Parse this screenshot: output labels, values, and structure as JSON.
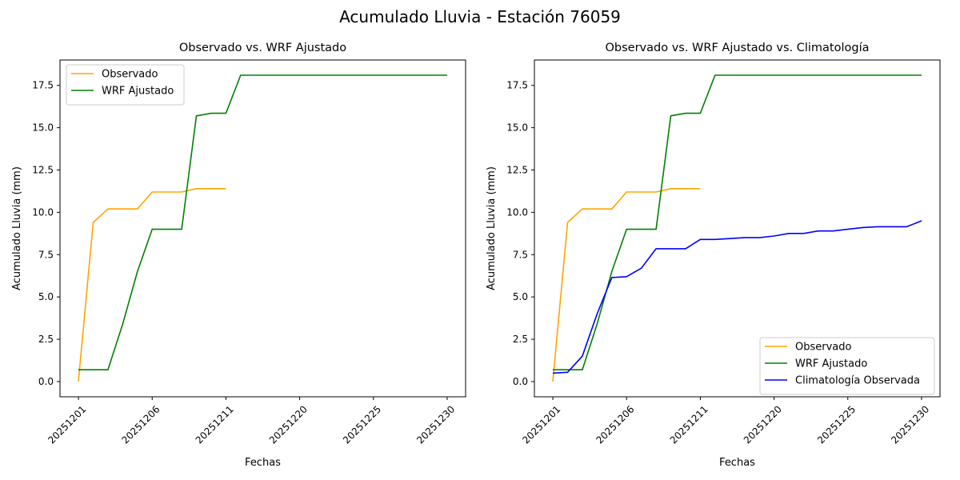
{
  "figure": {
    "title": "Acumulado Lluvia - Estación 76059"
  },
  "chart_data": [
    {
      "type": "line",
      "title": "Observado vs. WRF Ajustado",
      "xlabel": "Fechas",
      "ylabel": "Acumulado Lluvia (mm)",
      "x_index": [
        0,
        1,
        2,
        3,
        4,
        5,
        6,
        7,
        8,
        9,
        10,
        11,
        12,
        13,
        14,
        15,
        16,
        17,
        18,
        19,
        20,
        21,
        22,
        23,
        24,
        25,
        26,
        27,
        28,
        29,
        30
      ],
      "xticks": [
        {
          "pos": 0,
          "label": "20251201"
        },
        {
          "pos": 5,
          "label": "20251206"
        },
        {
          "pos": 10,
          "label": "20251211"
        },
        {
          "pos": 15,
          "label": "20251220"
        },
        {
          "pos": 20,
          "label": "20251225"
        },
        {
          "pos": 25,
          "label": "20251230"
        }
      ],
      "xlim": [
        -1.25,
        26.25
      ],
      "ylim": [
        -0.9,
        19.0
      ],
      "yticks": [
        "0.0",
        "2.5",
        "5.0",
        "7.5",
        "10.0",
        "12.5",
        "15.0",
        "17.5"
      ],
      "grid": false,
      "legend": "upper-left",
      "series": [
        {
          "name": "Observado",
          "color": "#ffa500",
          "x": [
            0,
            1,
            2,
            3,
            4,
            5,
            6,
            7,
            8,
            9,
            10
          ],
          "y": [
            0.0,
            9.4,
            10.2,
            10.2,
            10.2,
            11.2,
            11.2,
            11.2,
            11.4,
            11.4,
            11.4
          ]
        },
        {
          "name": "WRF Ajustado",
          "color": "#008000",
          "x": [
            0,
            1,
            2,
            3,
            4,
            5,
            6,
            7,
            8,
            9,
            10,
            11,
            12,
            13,
            14,
            15,
            16,
            17,
            18,
            19,
            20,
            21,
            22,
            23,
            24,
            25
          ],
          "y": [
            0.7,
            0.7,
            0.7,
            3.4,
            6.5,
            9.0,
            9.0,
            9.0,
            15.7,
            15.85,
            15.85,
            18.1,
            18.1,
            18.1,
            18.1,
            18.1,
            18.1,
            18.1,
            18.1,
            18.1,
            18.1,
            18.1,
            18.1,
            18.1,
            18.1,
            18.1
          ]
        }
      ]
    },
    {
      "type": "line",
      "title": "Observado vs. WRF Ajustado vs. Climatología",
      "xlabel": "Fechas",
      "ylabel": "Acumulado Lluvia (mm)",
      "xticks": [
        {
          "pos": 0,
          "label": "20251201"
        },
        {
          "pos": 5,
          "label": "20251206"
        },
        {
          "pos": 10,
          "label": "20251211"
        },
        {
          "pos": 15,
          "label": "20251220"
        },
        {
          "pos": 20,
          "label": "20251225"
        },
        {
          "pos": 25,
          "label": "20251230"
        }
      ],
      "xlim": [
        -1.25,
        26.25
      ],
      "ylim": [
        -0.9,
        19.0
      ],
      "yticks": [
        "0.0",
        "2.5",
        "5.0",
        "7.5",
        "10.0",
        "12.5",
        "15.0",
        "17.5"
      ],
      "grid": false,
      "legend": "lower-right",
      "series": [
        {
          "name": "Observado",
          "color": "#ffa500",
          "x": [
            0,
            1,
            2,
            3,
            4,
            5,
            6,
            7,
            8,
            9,
            10
          ],
          "y": [
            0.0,
            9.4,
            10.2,
            10.2,
            10.2,
            11.2,
            11.2,
            11.2,
            11.4,
            11.4,
            11.4
          ]
        },
        {
          "name": "WRF Ajustado",
          "color": "#008000",
          "x": [
            0,
            1,
            2,
            3,
            4,
            5,
            6,
            7,
            8,
            9,
            10,
            11,
            12,
            13,
            14,
            15,
            16,
            17,
            18,
            19,
            20,
            21,
            22,
            23,
            24,
            25
          ],
          "y": [
            0.7,
            0.7,
            0.7,
            3.4,
            6.5,
            9.0,
            9.0,
            9.0,
            15.7,
            15.85,
            15.85,
            18.1,
            18.1,
            18.1,
            18.1,
            18.1,
            18.1,
            18.1,
            18.1,
            18.1,
            18.1,
            18.1,
            18.1,
            18.1,
            18.1,
            18.1
          ]
        },
        {
          "name": "Climatología Observada",
          "color": "#0000ff",
          "x": [
            0,
            1,
            2,
            3,
            4,
            5,
            6,
            7,
            8,
            9,
            10,
            11,
            12,
            13,
            14,
            15,
            16,
            17,
            18,
            19,
            20,
            21,
            22,
            23,
            24,
            25
          ],
          "y": [
            0.5,
            0.55,
            1.5,
            4.0,
            6.15,
            6.2,
            6.7,
            7.85,
            7.85,
            7.85,
            8.4,
            8.4,
            8.45,
            8.5,
            8.5,
            8.6,
            8.75,
            8.75,
            8.9,
            8.9,
            9.0,
            9.1,
            9.15,
            9.15,
            9.15,
            9.5
          ]
        }
      ]
    }
  ]
}
